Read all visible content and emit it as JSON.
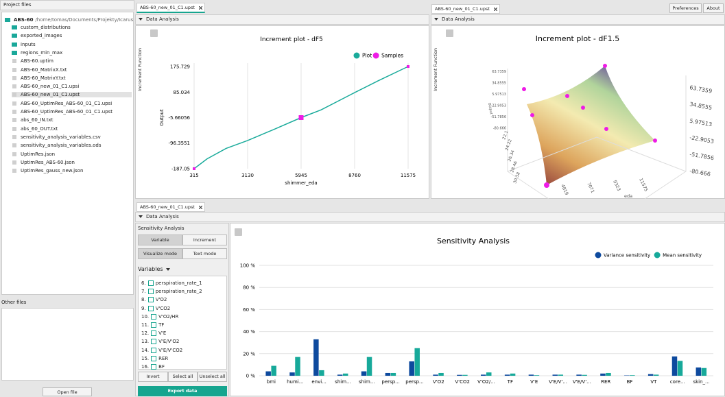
{
  "left_panel": {
    "title": "Project files",
    "root": {
      "name": "ABS-60",
      "path": "/home/tomas/Documents/Projekty/Icarus"
    },
    "items": [
      {
        "name": "custom_distributions",
        "kind": "folder"
      },
      {
        "name": "exported_images",
        "kind": "folder"
      },
      {
        "name": "inputs",
        "kind": "folder"
      },
      {
        "name": "regions_min_max",
        "kind": "folder"
      },
      {
        "name": "ABS-60.uptim",
        "kind": "file"
      },
      {
        "name": "ABS-60_MatrixX.txt",
        "kind": "file"
      },
      {
        "name": "ABS-60_MatrixY.txt",
        "kind": "file"
      },
      {
        "name": "ABS-60_new_01_C1.upsi",
        "kind": "file"
      },
      {
        "name": "ABS-60_new_01_C1.upst",
        "kind": "file",
        "selected": true
      },
      {
        "name": "ABS-60_UptimRes_ABS-60_01_C1.upsi",
        "kind": "file"
      },
      {
        "name": "ABS-60_UptimRes_ABS-60_01_C1.upst",
        "kind": "file"
      },
      {
        "name": "abs_60_IN.txt",
        "kind": "file"
      },
      {
        "name": "abs_60_OUT.txt",
        "kind": "file"
      },
      {
        "name": "sensitivity_analysis_variables.csv",
        "kind": "file"
      },
      {
        "name": "sensitivity_analysis_variables.ods",
        "kind": "file"
      },
      {
        "name": "UptimRes.json",
        "kind": "file"
      },
      {
        "name": "UptimRes_ABS-60.json",
        "kind": "file"
      },
      {
        "name": "UptimRes_gauss_new.json",
        "kind": "file"
      }
    ],
    "other_title": "Other files",
    "open_button": "Open file"
  },
  "toolbar": {
    "preferences": "Preferences",
    "about": "About"
  },
  "plot_panel": {
    "tab": "ABS-60_new_01_C1.upst",
    "section": "Data Analysis",
    "side_label": "Increment Function"
  },
  "surface_panel": {
    "tab": "ABS-60_new_01_C1.upst",
    "section": "Data Analysis",
    "side_label": "Increment Function"
  },
  "sensitivity_panel": {
    "tab": "ABS-60_new_01_C1.upst",
    "section": "Data Analysis",
    "sidebar": {
      "title": "Sensitivity Analysis",
      "tab_variable": "Variable",
      "tab_increment": "Increment",
      "mode_visualize": "Visualize mode",
      "mode_text": "Text mode",
      "variables_title": "Variables",
      "variables": [
        {
          "number": "6.",
          "name": "perspiration_rate_1"
        },
        {
          "number": "7.",
          "name": "perspiration_rate_2"
        },
        {
          "number": "8.",
          "name": "V'O2"
        },
        {
          "number": "9.",
          "name": "V'CO2"
        },
        {
          "number": "10.",
          "name": "V'O2/HR"
        },
        {
          "number": "11.",
          "name": "TF"
        },
        {
          "number": "12.",
          "name": "V'E"
        },
        {
          "number": "13.",
          "name": "V'E/V'O2"
        },
        {
          "number": "14.",
          "name": "V'E/V'CO2"
        },
        {
          "number": "15.",
          "name": "RER"
        },
        {
          "number": "16.",
          "name": "BF"
        }
      ],
      "invert": "Invert",
      "select_all": "Select all",
      "unselect_all": "Unselect all",
      "export": "Export data"
    }
  },
  "chart_data": [
    {
      "type": "line",
      "title": "Increment plot - dF5",
      "x_label": "shimmer_eda",
      "y_label": "Output",
      "xlim": [
        315,
        11575
      ],
      "xticks": [
        315,
        3130,
        5945,
        8760,
        11575
      ],
      "ylim": [
        -187.05,
        175.729
      ],
      "yticks": [
        175.729,
        85.034,
        -5.66056,
        -96.3551,
        -187.05
      ],
      "grid": "x",
      "legend": "top-right",
      "series": [
        {
          "name": "Plot",
          "color": "#1aab9b",
          "mode": "line",
          "x": [
            315,
            1000,
            2000,
            3130,
            4500,
            5945,
            7000,
            8760,
            10000,
            11575
          ],
          "values": [
            -187.05,
            -152,
            -115,
            -87,
            -48,
            -5.66056,
            22,
            83,
            125,
            175.729
          ]
        },
        {
          "name": "Samples",
          "color": "#ee1be6",
          "mode": "markers",
          "x": [
            315,
            5945,
            11575
          ],
          "values": [
            -187.05,
            -5.66056,
            175.729
          ]
        }
      ]
    },
    {
      "type": "surface3d",
      "title": "Increment plot - dF1.5",
      "z_label": "Output",
      "x_label": "eda",
      "zticks": [
        63.7359,
        34.8555,
        5.97513,
        -22.9053,
        -51.7856,
        -80.666
      ],
      "yticks": [
        30.58,
        28.46,
        26.34,
        24.22,
        22.1
      ],
      "xticks": [
        4819,
        7071,
        9323,
        11575
      ]
    },
    {
      "type": "bar",
      "title": "Sensitivity Analysis",
      "ylim": [
        0,
        100
      ],
      "yticks": [
        {
          "value": 0,
          "label": "0 %"
        },
        {
          "value": 20,
          "label": "20 %"
        },
        {
          "value": 40,
          "label": "40 %"
        },
        {
          "value": 60,
          "label": "60 %"
        },
        {
          "value": 80,
          "label": "80 %"
        },
        {
          "value": 100,
          "label": "100 %"
        }
      ],
      "grid": true,
      "legend": "top-right",
      "categories": [
        "bmi",
        "humi...",
        "envi...",
        "shim...",
        "shim...",
        "persp...",
        "persp...",
        "V'O2",
        "V'CO2",
        "V'O2/...",
        "TF",
        "V'E",
        "V'E/V'...",
        "V'E/V'...",
        "RER",
        "BF",
        "VT",
        "core...",
        "skin_..."
      ],
      "series": [
        {
          "name": "Variance sensitivity",
          "color": "#0e4a9e",
          "values": [
            4,
            3,
            33,
            1,
            4,
            2.5,
            13,
            1,
            0.8,
            1,
            1,
            1,
            1,
            1,
            2,
            0.3,
            1.5,
            17.5,
            7.5
          ]
        },
        {
          "name": "Mean sensitivity",
          "color": "#17a99a",
          "values": [
            9,
            17,
            5,
            2,
            17,
            2.5,
            25,
            2.5,
            0.8,
            3,
            2,
            0.5,
            1,
            0.8,
            2.5,
            0.5,
            1,
            13.5,
            7
          ]
        }
      ]
    }
  ]
}
